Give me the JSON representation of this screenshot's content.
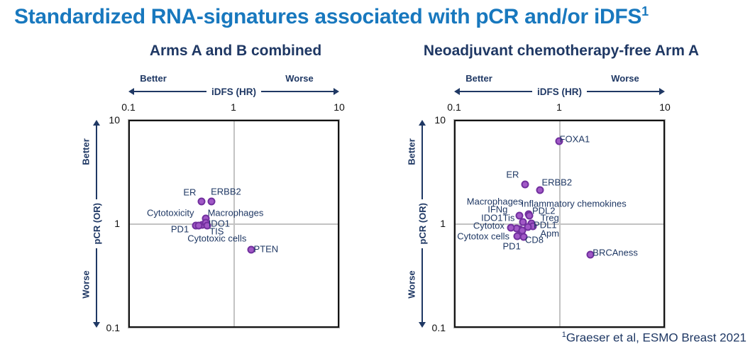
{
  "title": "Standardized RNA-signatures associated with pCR and/or iDFS",
  "title_superscript": "1",
  "footnote": "Graeser et al, ESMO Breast 2021",
  "footnote_superscript": "1",
  "colors": {
    "title_blue": "#1878BE",
    "navy_text": "#1F3864",
    "dot_fill": "#A158C6",
    "dot_border": "#71309E",
    "gridline_grey": "#C3C3C3",
    "plot_border": "#141414"
  },
  "axes": {
    "x_label": "iDFS (HR)",
    "y_label": "pCR (OR)",
    "better": "Better",
    "worse": "Worse",
    "x_ticks": [
      "0.1",
      "1",
      "10"
    ],
    "y_ticks": [
      "10",
      "1",
      "0.1"
    ],
    "x_range": [
      0.1,
      10
    ],
    "y_range": [
      0.1,
      10
    ],
    "scale": "log",
    "grid": "center crosshair at 1.0"
  },
  "chart_data": [
    {
      "type": "scatter",
      "title": "Arms A and B combined",
      "xlabel": "iDFS (HR)",
      "ylabel": "pCR (OR)",
      "xscale": "log",
      "yscale": "log",
      "xlim": [
        0.1,
        10
      ],
      "ylim": [
        0.1,
        10
      ],
      "points": [
        {
          "label": "ER",
          "hr": 0.49,
          "or": 1.66,
          "lhr": 0.377,
          "lor": 2.03
        },
        {
          "label": "ERBB2",
          "hr": 0.61,
          "or": 1.66,
          "lhr": 0.84,
          "lor": 2.06
        },
        {
          "label": "Cytotoxicity",
          "hr": 0.5,
          "or": 0.98,
          "lhr": 0.246,
          "lor": 1.28
        },
        {
          "label": "Macrophages",
          "hr": 0.536,
          "or": 1.12,
          "lhr": 1.04,
          "lor": 1.28
        },
        {
          "label": "IDO1",
          "hr": 0.536,
          "or": 1.02,
          "lhr": 0.723,
          "lor": 1.016
        },
        {
          "label": "PD1",
          "hr": 0.43,
          "or": 0.957,
          "lhr": 0.303,
          "lor": 0.882
        },
        {
          "label": "TIS",
          "hr": 0.556,
          "or": 0.957,
          "lhr": 0.684,
          "lor": 0.841
        },
        {
          "label": "Cytotoxic cells",
          "hr": 0.459,
          "or": 0.966,
          "lhr": 0.689,
          "lor": 0.719
        },
        {
          "label": "PTEN",
          "hr": 1.46,
          "or": 0.561,
          "lhr": 2.04,
          "lor": 0.568
        }
      ]
    },
    {
      "type": "scatter",
      "title": "Neoadjuvant chemotherapy-free Arm A",
      "xlabel": "iDFS (HR)",
      "ylabel": "pCR (OR)",
      "xscale": "log",
      "yscale": "log",
      "xlim": [
        0.1,
        10
      ],
      "ylim": [
        0.1,
        10
      ],
      "points": [
        {
          "label": "FOXA1",
          "hr": 0.988,
          "or": 6.37,
          "lhr": 1.4,
          "lor": 6.73
        },
        {
          "label": "ER",
          "hr": 0.466,
          "or": 2.43,
          "lhr": 0.354,
          "lor": 3.01
        },
        {
          "label": "ERBB2",
          "hr": 0.65,
          "or": 2.13,
          "lhr": 0.943,
          "lor": 2.52
        },
        {
          "label": "Macrophages",
          "hr": 0.448,
          "or": 1.035,
          "lhr": 0.238,
          "lor": 1.65
        },
        {
          "label": "IFNg",
          "hr": 0.409,
          "or": 1.198,
          "lhr": 0.254,
          "lor": 1.39
        },
        {
          "label": "Inflammatory chemokines",
          "hr": 0.504,
          "or": 1.242,
          "lhr": 1.374,
          "lor": 1.566
        },
        {
          "label": "PDL2",
          "hr": 0.51,
          "or": 1.204,
          "lhr": 0.705,
          "lor": 1.34
        },
        {
          "label": "IDO1",
          "hr": 0.414,
          "or": 0.893,
          "lhr": 0.224,
          "lor": 1.14
        },
        {
          "label": "Tis",
          "hr": 0.384,
          "or": 0.903,
          "lhr": 0.325,
          "lor": 1.14
        },
        {
          "label": "Treg",
          "hr": 0.536,
          "or": 1.013,
          "lhr": 0.805,
          "lor": 1.152
        },
        {
          "label": "Cytotox",
          "hr": 0.342,
          "or": 0.913,
          "lhr": 0.209,
          "lor": 0.954
        },
        {
          "label": "PDL1",
          "hr": 0.551,
          "or": 0.951,
          "lhr": 0.728,
          "lor": 0.977
        },
        {
          "label": "Apm",
          "hr": 0.496,
          "or": 0.927,
          "lhr": 0.805,
          "lor": 0.809
        },
        {
          "label": "Cytotox cells",
          "hr": 0.39,
          "or": 0.755,
          "lhr": 0.185,
          "lor": 0.753
        },
        {
          "label": "CD8",
          "hr": 0.455,
          "or": 0.748,
          "lhr": 0.572,
          "lor": 0.697
        },
        {
          "label": "PD1",
          "hr": 0.436,
          "or": 0.861,
          "lhr": 0.347,
          "lor": 0.605
        },
        {
          "label": "BRCAness",
          "hr": 1.985,
          "or": 0.497,
          "lhr": 3.44,
          "lor": 0.523
        }
      ]
    }
  ]
}
